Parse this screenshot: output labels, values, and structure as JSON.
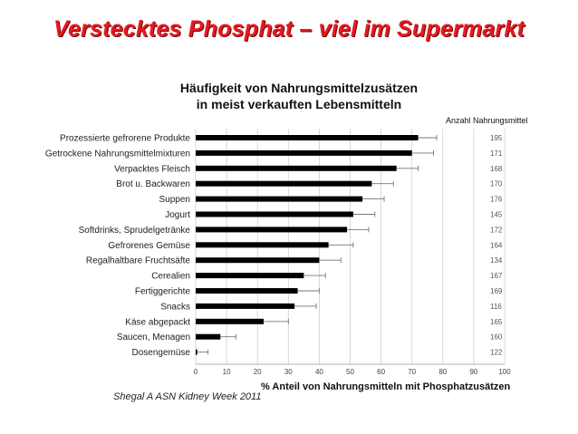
{
  "slide": {
    "title": "Verstecktes Phosphat – viel im Supermarkt",
    "chart_title_line1": "Häufigkeit von Nahrungsmittelzusätzen",
    "chart_title_line2": "in meist verkauften Lebensmitteln",
    "citation": "Shegal A  ASN Kidney Week 2011"
  },
  "chart_data": {
    "type": "bar",
    "orientation": "horizontal",
    "xlabel": "% Anteil von Nahrungsmitteln mit Phosphatzusätzen",
    "right_column_header": "Anzahl Nahrungsmittel",
    "xlim": [
      0,
      100
    ],
    "xticks": [
      0,
      10,
      20,
      30,
      40,
      50,
      60,
      70,
      80,
      90,
      100
    ],
    "grid": "vertical",
    "bar_color": "#000000",
    "categories": [
      "Prozessierte gefrorene Produkte",
      "Getrockene Nahrungsmittelmixturen",
      "Verpacktes Fleisch",
      "Brot u. Backwaren",
      "Suppen",
      "Jogurt",
      "Softdrinks, Sprudelgetränke",
      "Gefrorenes Gemüse",
      "Regalhaltbare Fruchtsäfte",
      "Cerealien",
      "Fertiggerichte",
      "Snacks",
      "Käse abgepackt",
      "Saucen, Menagen",
      "Dosengemüse"
    ],
    "values": [
      72,
      70,
      65,
      57,
      54,
      51,
      49,
      43,
      40,
      35,
      33,
      32,
      22,
      8,
      0.5
    ],
    "error_high": [
      78,
      77,
      72,
      64,
      61,
      58,
      56,
      51,
      47,
      42,
      40,
      39,
      30,
      13,
      4
    ],
    "counts": [
      "195",
      "171",
      "168",
      "170",
      "176",
      "145",
      "172",
      "164",
      "134",
      "167",
      "169",
      "116",
      "165",
      "160",
      "122"
    ]
  }
}
